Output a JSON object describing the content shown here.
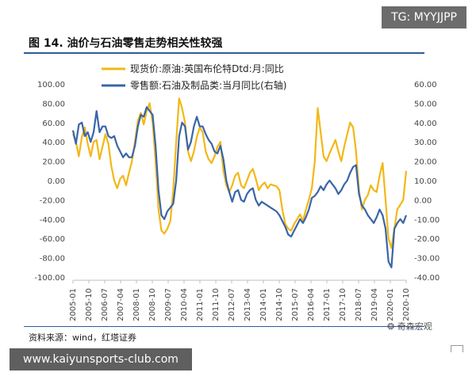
{
  "badge": "TG: MYYJJPP",
  "figure": {
    "title": "图 14. 油价与石油零售走势相关性较强",
    "source": "资料来源：wind，红塔证券",
    "watermark": "奇森宏观"
  },
  "footer": {
    "url": "www.kaiyunsports-club.com"
  },
  "colors": {
    "spot": "#f2b816",
    "retail": "#3a65a8",
    "rule": "#2f5b9a"
  },
  "chart_data": {
    "type": "line",
    "x_labels": [
      "2005-01",
      "2005-10",
      "2006-07",
      "2007-04",
      "2008-01",
      "2008-10",
      "2009-07",
      "2010-04",
      "2011-01",
      "2011-10",
      "2012-07",
      "2013-04",
      "2014-01",
      "2014-10",
      "2015-07",
      "2016-04",
      "2017-01",
      "2017-10",
      "2018-07",
      "2019-04",
      "2020-01",
      "2020-10"
    ],
    "y_left": {
      "ticks": [
        "100.00",
        "80.00",
        "60.00",
        "40.00",
        "20.00",
        "0.00",
        "-20.00",
        "-40.00",
        "-60.00",
        "-80.00",
        "-100.00"
      ],
      "range": [
        -100,
        100
      ]
    },
    "y_right": {
      "ticks": [
        "60.00",
        "50.00",
        "40.00",
        "30.00",
        "20.00",
        "10.00",
        "0.00",
        "-10.00",
        "-20.00",
        "-30.00",
        "-40.00"
      ],
      "range": [
        -40,
        60
      ]
    },
    "series": [
      {
        "name": "现货价:原油:英国布伦特Dtd:月:同比",
        "axis": "left",
        "color": "#f2b816",
        "values": [
          48,
          40,
          25,
          45,
          55,
          38,
          25,
          40,
          42,
          22,
          35,
          48,
          38,
          15,
          0,
          -8,
          2,
          5,
          -5,
          8,
          20,
          40,
          62,
          70,
          58,
          72,
          80,
          60,
          20,
          -30,
          -52,
          -55,
          -50,
          -42,
          -10,
          40,
          85,
          75,
          60,
          30,
          20,
          30,
          45,
          55,
          50,
          30,
          22,
          18,
          25,
          35,
          40,
          10,
          -5,
          -12,
          -5,
          5,
          8,
          -5,
          -8,
          0,
          8,
          12,
          2,
          -10,
          -5,
          -2,
          -8,
          -4,
          -5,
          -6,
          -10,
          -30,
          -45,
          -50,
          -52,
          -45,
          -40,
          -35,
          -42,
          -30,
          -20,
          -8,
          20,
          75,
          50,
          25,
          20,
          28,
          35,
          42,
          30,
          20,
          35,
          48,
          60,
          55,
          30,
          -10,
          -30,
          -20,
          -15,
          -5,
          -10,
          -12,
          5,
          18,
          -20,
          -60,
          -70,
          -50,
          -30,
          -25,
          -20,
          10
        ]
      },
      {
        "name": "零售额:石油及制品类:当月同比(右轴)",
        "axis": "right",
        "color": "#3a65a8",
        "values": [
          36,
          29,
          39,
          40,
          33,
          35,
          30,
          35,
          46,
          35,
          38,
          38,
          33,
          32,
          33,
          28,
          25,
          22,
          24,
          22,
          22,
          28,
          38,
          44,
          43,
          48,
          46,
          44,
          28,
          5,
          -8,
          -10,
          -6,
          -4,
          -2,
          10,
          33,
          40,
          38,
          26,
          30,
          38,
          43,
          38,
          38,
          34,
          31,
          29,
          25,
          24,
          28,
          21,
          10,
          4,
          -1,
          4,
          5,
          0,
          -1,
          3,
          5,
          6,
          0,
          -3,
          -1,
          -2,
          -3,
          -4,
          -5,
          -6,
          -8,
          -11,
          -14,
          -18,
          -19,
          -16,
          -13,
          -10,
          -12,
          -9,
          -5,
          1,
          2,
          4,
          7,
          5,
          8,
          10,
          8,
          6,
          3,
          5,
          8,
          10,
          14,
          17,
          18,
          3,
          -3,
          -5,
          -8,
          -10,
          -12,
          -9,
          -5,
          -8,
          -15,
          -32,
          -35,
          -15,
          -12,
          -10,
          -12,
          -8
        ]
      }
    ],
    "grid": false,
    "legend": "top-left"
  }
}
